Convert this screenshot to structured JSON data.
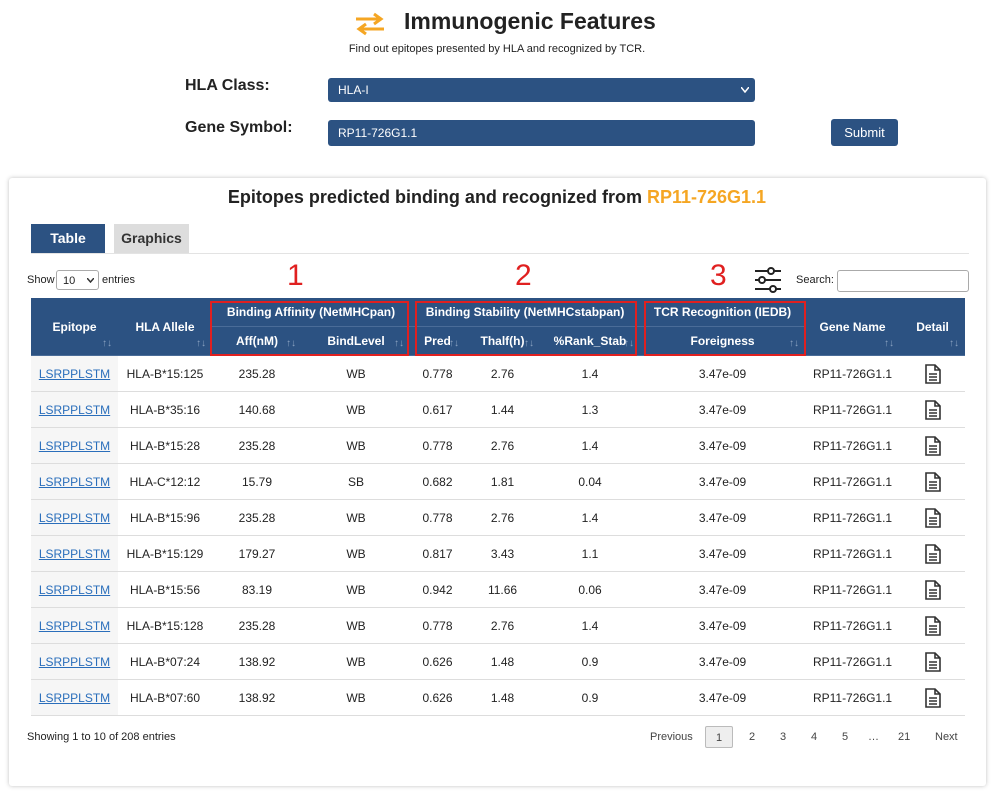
{
  "header": {
    "title": "Immunogenic Features",
    "subtitle": "Find out epitopes presented by HLA and recognized by TCR."
  },
  "form": {
    "hla_label": "HLA Class:",
    "hla_value": "HLA-I",
    "gene_label": "Gene Symbol:",
    "gene_value": "RP11-726G1.1",
    "submit": "Submit"
  },
  "panel": {
    "title": "Epitopes predicted binding and recognized from",
    "gene": "RP11-726G1.1",
    "tabs": [
      "Table",
      "Graphics"
    ]
  },
  "controls": {
    "show": "Show",
    "entries_value": "10",
    "entries": "entries",
    "search": "Search:"
  },
  "annotations": [
    "1",
    "2",
    "3"
  ],
  "table": {
    "groups": [
      "Binding Affinity (NetMHCpan)",
      "Binding Stability (NetMHCstabpan)",
      "TCR Recognition (IEDB)"
    ],
    "columns": [
      "Epitope",
      "HLA Allele",
      "Aff(nM)",
      "BindLevel",
      "Pred",
      "Thalf(h)",
      "%Rank_Stab",
      "Foreigness",
      "Gene Name",
      "Detail"
    ],
    "rows": [
      [
        "LSRPPLSTM",
        "HLA-B*15:125",
        "235.28",
        "WB",
        "0.778",
        "2.76",
        "1.4",
        "3.47e-09",
        "RP11-726G1.1"
      ],
      [
        "LSRPPLSTM",
        "HLA-B*35:16",
        "140.68",
        "WB",
        "0.617",
        "1.44",
        "1.3",
        "3.47e-09",
        "RP11-726G1.1"
      ],
      [
        "LSRPPLSTM",
        "HLA-B*15:28",
        "235.28",
        "WB",
        "0.778",
        "2.76",
        "1.4",
        "3.47e-09",
        "RP11-726G1.1"
      ],
      [
        "LSRPPLSTM",
        "HLA-C*12:12",
        "15.79",
        "SB",
        "0.682",
        "1.81",
        "0.04",
        "3.47e-09",
        "RP11-726G1.1"
      ],
      [
        "LSRPPLSTM",
        "HLA-B*15:96",
        "235.28",
        "WB",
        "0.778",
        "2.76",
        "1.4",
        "3.47e-09",
        "RP11-726G1.1"
      ],
      [
        "LSRPPLSTM",
        "HLA-B*15:129",
        "179.27",
        "WB",
        "0.817",
        "3.43",
        "1.1",
        "3.47e-09",
        "RP11-726G1.1"
      ],
      [
        "LSRPPLSTM",
        "HLA-B*15:56",
        "83.19",
        "WB",
        "0.942",
        "11.66",
        "0.06",
        "3.47e-09",
        "RP11-726G1.1"
      ],
      [
        "LSRPPLSTM",
        "HLA-B*15:128",
        "235.28",
        "WB",
        "0.778",
        "2.76",
        "1.4",
        "3.47e-09",
        "RP11-726G1.1"
      ],
      [
        "LSRPPLSTM",
        "HLA-B*07:24",
        "138.92",
        "WB",
        "0.626",
        "1.48",
        "0.9",
        "3.47e-09",
        "RP11-726G1.1"
      ],
      [
        "LSRPPLSTM",
        "HLA-B*07:60",
        "138.92",
        "WB",
        "0.626",
        "1.48",
        "0.9",
        "3.47e-09",
        "RP11-726G1.1"
      ]
    ]
  },
  "footer": {
    "info": "Showing 1 to 10 of 208 entries",
    "pages": [
      "Previous",
      "1",
      "2",
      "3",
      "4",
      "5",
      "…",
      "21",
      "Next"
    ]
  }
}
